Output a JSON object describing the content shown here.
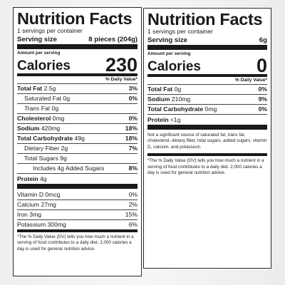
{
  "left": {
    "title": "Nutrition Facts",
    "servings": "1 servings per container",
    "serving_size_label": "Serving size",
    "serving_size_value": "8 pieces (204g)",
    "amount_per_serving": "Amount per serving",
    "calories_label": "Calories",
    "calories_value": "230",
    "dv_header": "% Daily Value*",
    "rows": [
      {
        "name": "Total Fat",
        "amount": "2.5g",
        "dv": "3%",
        "bold": true,
        "indent": 0,
        "italic": false
      },
      {
        "name": "Saturated Fat",
        "amount": "0g",
        "dv": "0%",
        "bold": false,
        "indent": 1,
        "italic": false
      },
      {
        "name": "Trans",
        "amount": "Fat 0g",
        "dv": "",
        "bold": false,
        "indent": 1,
        "italic": true
      },
      {
        "name": "Cholesterol",
        "amount": "0mg",
        "dv": "0%",
        "bold": true,
        "indent": 0,
        "italic": false
      },
      {
        "name": "Sodium",
        "amount": "420mg",
        "dv": "18%",
        "bold": true,
        "indent": 0,
        "italic": false
      },
      {
        "name": "Total Carbohydrate",
        "amount": "49g",
        "dv": "18%",
        "bold": true,
        "indent": 0,
        "italic": false
      },
      {
        "name": "Dietary Fiber",
        "amount": "2g",
        "dv": "7%",
        "bold": false,
        "indent": 1,
        "italic": false
      },
      {
        "name": "Total Sugars",
        "amount": "9g",
        "dv": "",
        "bold": false,
        "indent": 1,
        "italic": false
      },
      {
        "name": "Includes 4g Added Sugars",
        "amount": "",
        "dv": "8%",
        "bold": false,
        "indent": 2,
        "italic": false
      }
    ],
    "protein_label": "Protein",
    "protein_value": "4g",
    "vitamins": [
      {
        "name": "Vitamin D",
        "amount": "0mcg",
        "dv": "0%"
      },
      {
        "name": "Calcium",
        "amount": "27mg",
        "dv": "2%"
      },
      {
        "name": "Iron",
        "amount": "3mg",
        "dv": "15%"
      },
      {
        "name": "Potassium",
        "amount": "300mg",
        "dv": "6%"
      }
    ],
    "footnote": "*The % Daily Value (DV) tells you how much a nutrient in a serving of food contributes to a daily diet. 2,000 calories a day is used for general nutrition advice."
  },
  "right": {
    "title": "Nutrition Facts",
    "servings": "1 servings per container",
    "serving_size_label": "Serving size",
    "serving_size_value": "6g",
    "amount_per_serving": "Amount per serving",
    "calories_label": "Calories",
    "calories_value": "0",
    "dv_header": "% Daily Value*",
    "rows": [
      {
        "name": "Total Fat",
        "amount": "0g",
        "dv": "0%"
      },
      {
        "name": "Sodium",
        "amount": "210mg",
        "dv": "9%"
      },
      {
        "name": "Total Carbohydrate",
        "amount": "0mg",
        "dv": "0%"
      }
    ],
    "protein_label": "Protein",
    "protein_value": "<1g",
    "insignificant_note": "Not a significant source of saturated fat, trans fat, cholesterol, dietary fiber, total sugars, added sugars, vitamin D, calcium, and potassium.",
    "footnote": "*The % Daily Value (DV) tells you how much a nutrient in a serving of food contributes to a daily diet. 2,000 calories a day is used for general nutrition advice."
  }
}
